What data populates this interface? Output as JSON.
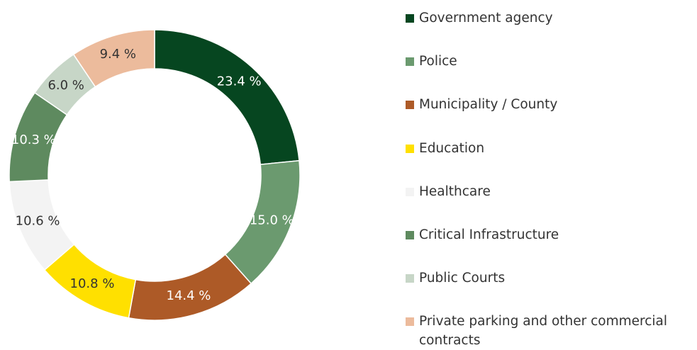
{
  "chart_data": {
    "type": "donut",
    "categories": [
      "Government agency",
      "Police",
      "Municipality / County",
      "Education",
      "Healthcare",
      "Critical Infrastructure",
      "Public Courts",
      "Private parking and other commercial contracts"
    ],
    "values": [
      23.4,
      15.0,
      14.4,
      10.8,
      10.6,
      10.3,
      6.0,
      9.4
    ],
    "value_labels": [
      "23.4 %",
      "15.0 %",
      "14.4 %",
      "10.8 %",
      "10.6 %",
      "10.3 %",
      "6.0 %",
      "9.4 %"
    ],
    "colors": [
      "#064620",
      "#6b9a6f",
      "#ad5a27",
      "#ffe000",
      "#f3f3f3",
      "#5e8a5f",
      "#c7d6c7",
      "#ecbb9c"
    ],
    "legend": "right"
  }
}
